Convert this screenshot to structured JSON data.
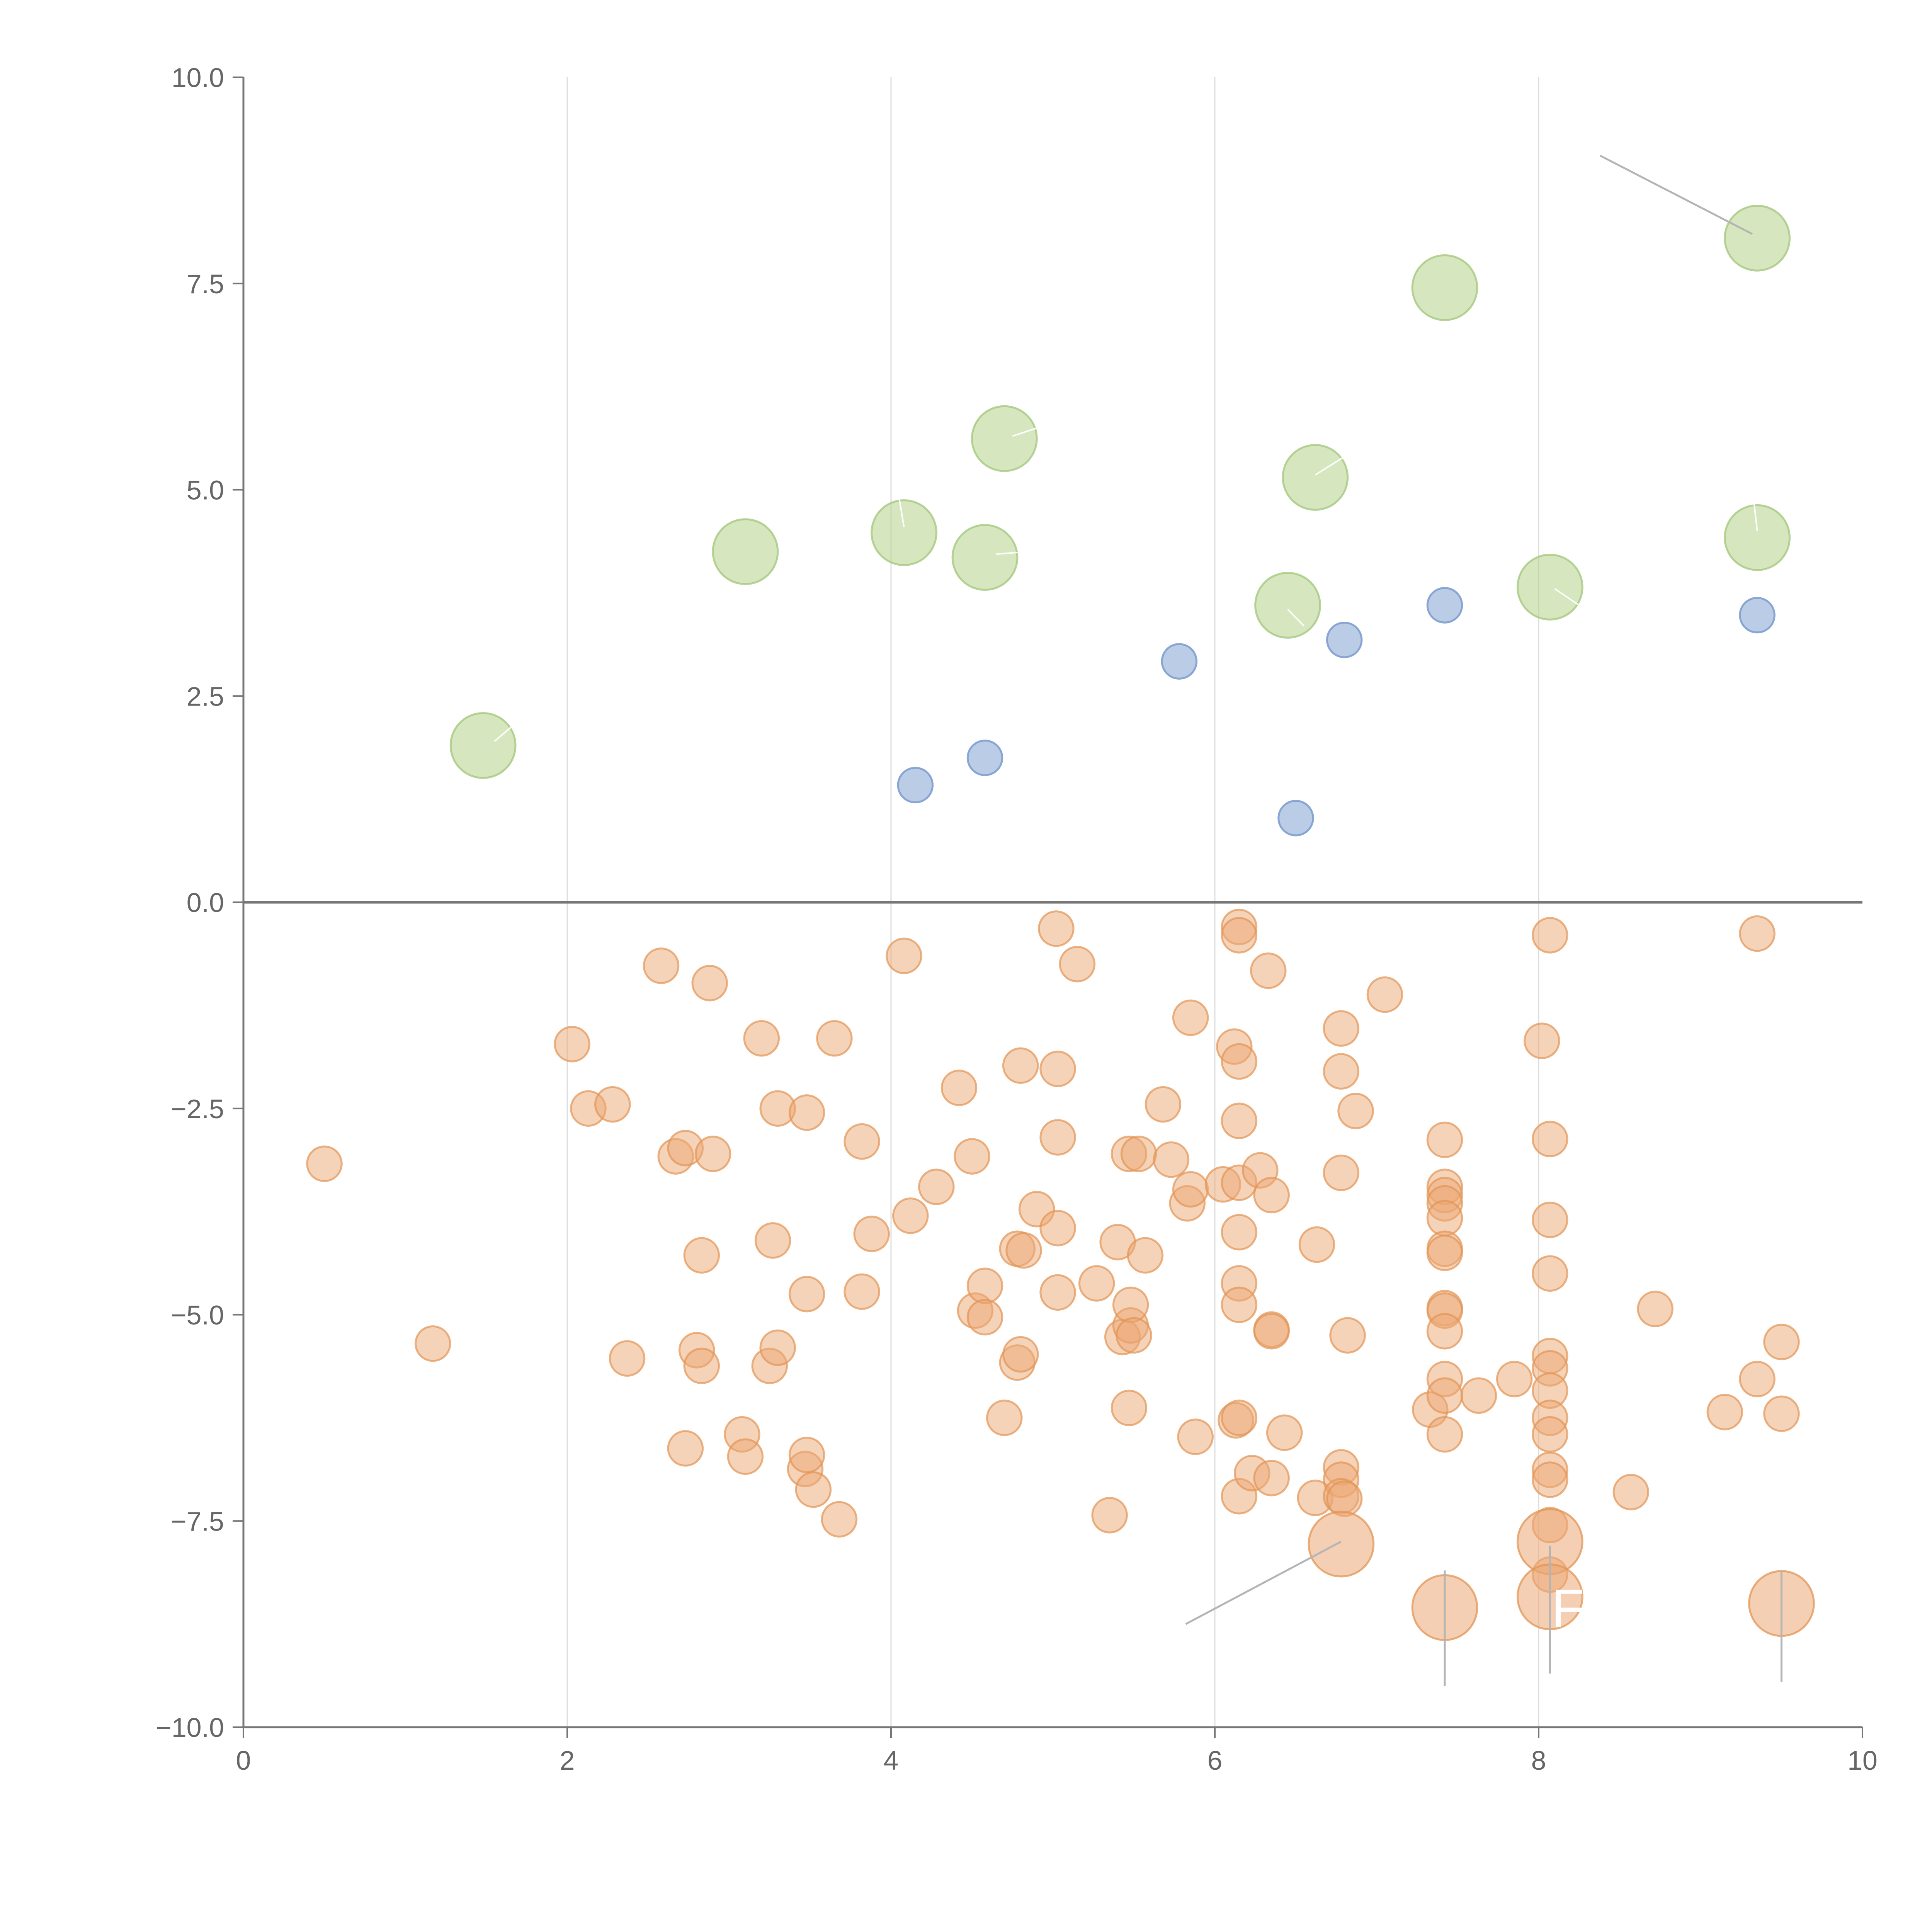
{
  "chart_data": {
    "type": "scatter",
    "title": "",
    "xlabel": "",
    "ylabel": "",
    "xlim": [
      0,
      10
    ],
    "ylim": [
      -10,
      10
    ],
    "grid": "vertical",
    "x_ticks": [
      0,
      2,
      4,
      6,
      8,
      10
    ],
    "x_tick_labels": [
      "0",
      "2",
      "4",
      "6",
      "8",
      "10"
    ],
    "y_ticks": [
      10,
      7.5,
      5,
      2.5,
      0,
      -2.5,
      -5,
      -7.5,
      -10
    ],
    "y_tick_labels": [
      "10.0",
      "7.5",
      "5.0",
      "2.5",
      "0.0",
      "−2.5",
      "−5.0",
      "−7.5",
      "−10.0"
    ],
    "series": [
      {
        "name": "green",
        "color": "#b5d48c",
        "stroke": "#a2c57a",
        "opacity": 0.55,
        "radius": 0.45,
        "points": [
          [
            1.48,
            1.9
          ],
          [
            3.1,
            4.25
          ],
          [
            4.08,
            4.48
          ],
          [
            4.58,
            4.18
          ],
          [
            4.7,
            5.62
          ],
          [
            6.45,
            3.6
          ],
          [
            6.62,
            5.15
          ],
          [
            7.42,
            7.45
          ],
          [
            8.07,
            3.82
          ],
          [
            9.35,
            8.05
          ],
          [
            9.35,
            4.42
          ]
        ]
      },
      {
        "name": "blue",
        "color": "#9db7dc",
        "stroke": "#7f9fcf",
        "opacity": 0.7,
        "radius": 0.24,
        "points": [
          [
            4.15,
            1.42
          ],
          [
            4.58,
            1.75
          ],
          [
            5.78,
            2.92
          ],
          [
            6.5,
            1.02
          ],
          [
            6.8,
            3.18
          ],
          [
            7.42,
            3.6
          ],
          [
            9.35,
            3.48
          ]
        ]
      },
      {
        "name": "orange",
        "color": "#eba874",
        "stroke": "#e39454",
        "opacity": 0.5,
        "radius": 0.24,
        "points": [
          [
            0.5,
            -3.17
          ],
          [
            1.17,
            -5.35
          ],
          [
            2.03,
            -1.72
          ],
          [
            2.13,
            -2.5
          ],
          [
            2.28,
            -2.45
          ],
          [
            2.37,
            -5.53
          ],
          [
            2.58,
            -0.77
          ],
          [
            2.67,
            -3.08
          ],
          [
            2.73,
            -2.98
          ],
          [
            2.73,
            -6.62
          ],
          [
            2.8,
            -5.43
          ],
          [
            2.83,
            -5.62
          ],
          [
            2.83,
            -4.28
          ],
          [
            2.88,
            -0.98
          ],
          [
            2.9,
            -3.05
          ],
          [
            3.08,
            -6.45
          ],
          [
            3.1,
            -6.72
          ],
          [
            3.2,
            -1.65
          ],
          [
            3.25,
            -5.62
          ],
          [
            3.27,
            -4.1
          ],
          [
            3.3,
            -2.5
          ],
          [
            3.3,
            -5.4
          ],
          [
            3.47,
            -6.87
          ],
          [
            3.48,
            -6.7
          ],
          [
            3.48,
            -4.75
          ],
          [
            3.48,
            -2.55
          ],
          [
            3.52,
            -7.12
          ],
          [
            3.65,
            -1.65
          ],
          [
            3.68,
            -7.48
          ],
          [
            3.82,
            -2.9
          ],
          [
            3.82,
            -4.72
          ],
          [
            3.88,
            -4.02
          ],
          [
            4.08,
            -0.65
          ],
          [
            4.12,
            -3.8
          ],
          [
            4.28,
            -3.45
          ],
          [
            4.42,
            -2.25
          ],
          [
            4.5,
            -3.08
          ],
          [
            4.52,
            -4.95
          ],
          [
            4.58,
            -4.65
          ],
          [
            4.58,
            -5.03
          ],
          [
            4.7,
            -6.25
          ],
          [
            4.78,
            -4.2
          ],
          [
            4.78,
            -5.58
          ],
          [
            4.8,
            -5.48
          ],
          [
            4.8,
            -1.98
          ],
          [
            4.82,
            -4.22
          ],
          [
            4.9,
            -3.72
          ],
          [
            5.02,
            -0.32
          ],
          [
            5.03,
            -2.85
          ],
          [
            5.03,
            -4.73
          ],
          [
            5.03,
            -3.95
          ],
          [
            5.03,
            -2.02
          ],
          [
            5.15,
            -0.75
          ],
          [
            5.27,
            -4.62
          ],
          [
            5.35,
            -7.43
          ],
          [
            5.4,
            -4.12
          ],
          [
            5.43,
            -5.27
          ],
          [
            5.47,
            -6.13
          ],
          [
            5.47,
            -3.05
          ],
          [
            5.48,
            -5.13
          ],
          [
            5.48,
            -4.88
          ],
          [
            5.5,
            -5.25
          ],
          [
            5.53,
            -3.05
          ],
          [
            5.57,
            -4.28
          ],
          [
            5.68,
            -2.45
          ],
          [
            5.73,
            -3.12
          ],
          [
            5.83,
            -3.65
          ],
          [
            5.85,
            -3.48
          ],
          [
            5.85,
            -1.4
          ],
          [
            5.88,
            -6.48
          ],
          [
            6.05,
            -3.42
          ],
          [
            6.12,
            -1.75
          ],
          [
            6.13,
            -6.28
          ],
          [
            6.15,
            -0.3
          ],
          [
            6.15,
            -0.4
          ],
          [
            6.15,
            -1.93
          ],
          [
            6.15,
            -2.65
          ],
          [
            6.15,
            -3.4
          ],
          [
            6.15,
            -4.0
          ],
          [
            6.15,
            -4.62
          ],
          [
            6.15,
            -4.88
          ],
          [
            6.15,
            -6.25
          ],
          [
            6.15,
            -7.2
          ],
          [
            6.23,
            -6.92
          ],
          [
            6.28,
            -3.25
          ],
          [
            6.33,
            -0.83
          ],
          [
            6.35,
            -3.55
          ],
          [
            6.35,
            -5.18
          ],
          [
            6.35,
            -5.2
          ],
          [
            6.35,
            -6.98
          ],
          [
            6.43,
            -6.43
          ],
          [
            6.62,
            -7.22
          ],
          [
            6.63,
            -4.15
          ],
          [
            6.78,
            -1.53
          ],
          [
            6.78,
            -2.05
          ],
          [
            6.78,
            -3.28
          ],
          [
            6.78,
            -6.85
          ],
          [
            6.78,
            -7.0
          ],
          [
            6.78,
            -7.2
          ],
          [
            6.8,
            -7.23
          ],
          [
            6.82,
            -5.25
          ],
          [
            6.87,
            -2.53
          ],
          [
            7.05,
            -1.12
          ],
          [
            7.33,
            -6.15
          ],
          [
            7.42,
            -2.88
          ],
          [
            7.42,
            -3.45
          ],
          [
            7.42,
            -3.55
          ],
          [
            7.42,
            -3.65
          ],
          [
            7.42,
            -3.83
          ],
          [
            7.42,
            -4.2
          ],
          [
            7.42,
            -4.25
          ],
          [
            7.42,
            -4.92
          ],
          [
            7.42,
            -4.95
          ],
          [
            7.42,
            -5.2
          ],
          [
            7.42,
            -5.78
          ],
          [
            7.42,
            -5.98
          ],
          [
            7.42,
            -6.45
          ],
          [
            7.63,
            -5.98
          ],
          [
            7.85,
            -5.78
          ],
          [
            8.02,
            -1.68
          ],
          [
            8.07,
            -0.4
          ],
          [
            8.07,
            -2.87
          ],
          [
            8.07,
            -3.85
          ],
          [
            8.07,
            -4.5
          ],
          [
            8.07,
            -5.5
          ],
          [
            8.07,
            -5.65
          ],
          [
            8.07,
            -5.92
          ],
          [
            8.07,
            -6.25
          ],
          [
            8.07,
            -6.45
          ],
          [
            8.07,
            -6.88
          ],
          [
            8.07,
            -7.0
          ],
          [
            8.07,
            -7.55
          ],
          [
            8.07,
            -8.15
          ],
          [
            8.57,
            -7.15
          ],
          [
            8.72,
            -4.93
          ],
          [
            9.15,
            -6.18
          ],
          [
            9.35,
            -0.38
          ],
          [
            9.35,
            -5.78
          ],
          [
            9.5,
            -5.33
          ],
          [
            9.5,
            -6.2
          ]
        ]
      },
      {
        "name": "orange-large",
        "color": "#eba874",
        "stroke": "#e39454",
        "opacity": 0.55,
        "radius": 0.45,
        "points": [
          [
            6.78,
            -7.78
          ],
          [
            7.42,
            -8.55
          ],
          [
            8.07,
            -7.75
          ],
          [
            8.07,
            -8.42
          ],
          [
            9.5,
            -8.5
          ]
        ]
      }
    ],
    "leader_lines": [
      {
        "color": "#b5b5b5",
        "from": [
          8.38,
          9.05
        ],
        "to": [
          9.32,
          8.1
        ]
      },
      {
        "color": "#b5b5b5",
        "from": [
          6.78,
          -7.75
        ],
        "to": [
          5.82,
          -8.75
        ]
      },
      {
        "color": "#b5b5b5",
        "from": [
          7.42,
          -8.1
        ],
        "to": [
          7.42,
          -9.5
        ]
      },
      {
        "color": "#b5b5b5",
        "from": [
          8.07,
          -7.8
        ],
        "to": [
          8.07,
          -9.35
        ]
      },
      {
        "color": "#b5b5b5",
        "from": [
          9.5,
          -8.1
        ],
        "to": [
          9.5,
          -9.45
        ]
      },
      {
        "color": "#ffffff",
        "from": [
          1.55,
          1.95
        ],
        "to": [
          1.7,
          2.2
        ]
      },
      {
        "color": "#ffffff",
        "from": [
          4.08,
          4.55
        ],
        "to": [
          4.05,
          4.9
        ]
      },
      {
        "color": "#ffffff",
        "from": [
          4.65,
          4.22
        ],
        "to": [
          4.85,
          4.25
        ]
      },
      {
        "color": "#ffffff",
        "from": [
          4.75,
          5.65
        ],
        "to": [
          4.95,
          5.78
        ]
      },
      {
        "color": "#ffffff",
        "from": [
          6.62,
          5.18
        ],
        "to": [
          6.8,
          5.4
        ]
      },
      {
        "color": "#ffffff",
        "from": [
          6.55,
          3.35
        ],
        "to": [
          6.45,
          3.55
        ]
      },
      {
        "color": "#ffffff",
        "from": [
          8.1,
          3.8
        ],
        "to": [
          8.25,
          3.6
        ]
      },
      {
        "color": "#ffffff",
        "from": [
          9.35,
          4.5
        ],
        "to": [
          9.33,
          4.85
        ]
      }
    ],
    "annotations": [
      {
        "text": "F",
        "x": 8.18,
        "y": -8.55,
        "color": "#ffffff"
      }
    ]
  }
}
